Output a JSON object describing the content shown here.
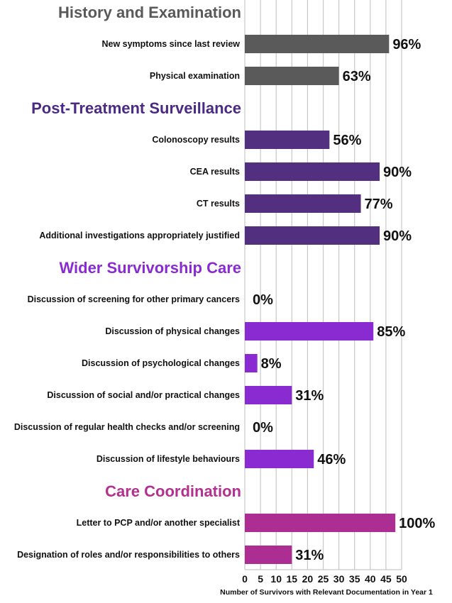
{
  "chart_data": {
    "type": "bar",
    "orientation": "horizontal",
    "xlabel": "Number of Survivors with Relevant Documentation in Year 1",
    "xlim": [
      0,
      50
    ],
    "xticks": [
      0,
      5,
      10,
      15,
      20,
      25,
      30,
      35,
      40,
      45,
      50
    ],
    "grid": true,
    "sections": [
      {
        "title": "History and Examination",
        "color": "#5a5a5a",
        "title_color": "#595959",
        "items": [
          {
            "label": "New symptoms since last review",
            "value": 46,
            "pct": "96%"
          },
          {
            "label": "Physical examination",
            "value": 30,
            "pct": "63%"
          }
        ]
      },
      {
        "title": "Post-Treatment Surveillance",
        "color": "#52307f",
        "title_color": "#4b2a84",
        "items": [
          {
            "label": "Colonoscopy results",
            "value": 27,
            "pct": "56%"
          },
          {
            "label": "CEA results",
            "value": 43,
            "pct": "90%"
          },
          {
            "label": "CT results",
            "value": 37,
            "pct": "77%"
          },
          {
            "label": "Additional investigations appropriately justified",
            "value": 43,
            "pct": "90%"
          }
        ]
      },
      {
        "title": "Wider Survivorship Care",
        "color": "#8a2bd2",
        "title_color": "#8a2bd2",
        "items": [
          {
            "label": "Discussion of screening for other primary cancers",
            "value": 0,
            "pct": "0%"
          },
          {
            "label": "Discussion of physical changes",
            "value": 41,
            "pct": "85%"
          },
          {
            "label": "Discussion of psychological changes",
            "value": 4,
            "pct": "8%"
          },
          {
            "label": "Discussion of social and/or practical changes",
            "value": 15,
            "pct": "31%"
          },
          {
            "label": "Discussion of regular health checks and/or screening",
            "value": 0,
            "pct": "0%"
          },
          {
            "label": "Discussion of lifestyle behaviours",
            "value": 22,
            "pct": "46%"
          }
        ]
      },
      {
        "title": "Care Coordination",
        "color": "#ad2e92",
        "title_color": "#b2308f",
        "items": [
          {
            "label": "Letter to PCP and/or another specialist",
            "value": 48,
            "pct": "100%"
          },
          {
            "label": "Designation of roles and/or responsibilities to others",
            "value": 15,
            "pct": "31%"
          }
        ]
      }
    ]
  }
}
